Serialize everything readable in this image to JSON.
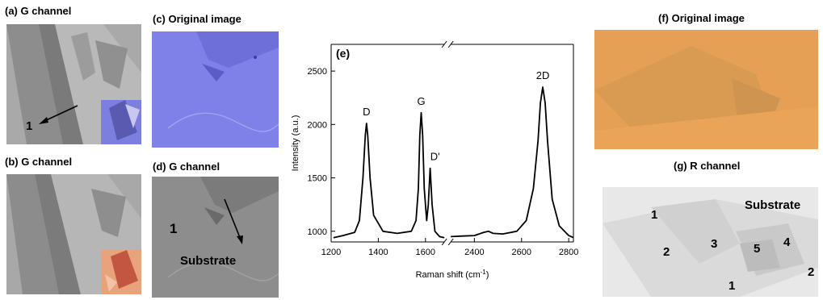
{
  "panels": {
    "a": {
      "caption": "(a) G channel",
      "label": "1"
    },
    "b": {
      "caption": "(b) G channel"
    },
    "c": {
      "caption": "(c) Original image"
    },
    "d": {
      "caption": "(d) G channel",
      "label_1": "1",
      "label_substrate": "Substrate"
    },
    "e": {
      "tag": "(e)"
    },
    "f": {
      "caption": "(f) Original image"
    },
    "g": {
      "caption": "(g) R channel",
      "labels": {
        "l1a": "1",
        "l2a": "2",
        "l3": "3",
        "l5": "5",
        "l4": "4",
        "l2b": "2",
        "l1b": "1",
        "substrate": "Substrate"
      }
    }
  },
  "chart_data": {
    "type": "line",
    "xlabel_base": "Raman shift (cm",
    "xlabel_sup": "-1",
    "xlabel_close": ")",
    "ylabel": "Intensity (a.u.)",
    "x_broken": true,
    "x_segments": [
      [
        1200,
        1680
      ],
      [
        2300,
        2820
      ]
    ],
    "xticks": [
      1200,
      1400,
      1600,
      2400,
      2600,
      2800
    ],
    "xtick_labels": [
      "1200",
      "1400",
      "1600",
      "2400",
      "2600",
      "2800"
    ],
    "ylim": [
      900,
      2750
    ],
    "yticks": [
      1000,
      1500,
      2000,
      2500
    ],
    "ytick_labels": [
      "1000",
      "1500",
      "2000",
      "2500"
    ],
    "peaks": [
      {
        "name": "D",
        "x": 1350,
        "y": 2010
      },
      {
        "name": "G",
        "x": 1582,
        "y": 2110
      },
      {
        "name": "D'",
        "x": 1620,
        "y": 1590
      },
      {
        "name": "2D",
        "x": 2690,
        "y": 2350
      }
    ],
    "series": [
      {
        "name": "",
        "x": [
          1210,
          1250,
          1300,
          1320,
          1335,
          1345,
          1350,
          1355,
          1365,
          1380,
          1420,
          1480,
          1540,
          1560,
          1570,
          1576,
          1582,
          1588,
          1595,
          1605,
          1612,
          1620,
          1628,
          1640,
          1660,
          1680
        ],
        "y": [
          940,
          960,
          990,
          1100,
          1500,
          1900,
          2010,
          1900,
          1500,
          1150,
          1000,
          980,
          1000,
          1100,
          1400,
          1900,
          2110,
          1900,
          1400,
          1100,
          1250,
          1590,
          1250,
          1000,
          950,
          940
        ]
      },
      {
        "name": "",
        "x": [
          2300,
          2350,
          2400,
          2440,
          2460,
          2480,
          2520,
          2580,
          2620,
          2650,
          2670,
          2680,
          2690,
          2700,
          2710,
          2730,
          2760,
          2800,
          2820
        ],
        "y": [
          950,
          955,
          960,
          990,
          1000,
          980,
          975,
          1000,
          1100,
          1400,
          1850,
          2200,
          2350,
          2200,
          1850,
          1300,
          1050,
          960,
          940
        ]
      }
    ]
  }
}
